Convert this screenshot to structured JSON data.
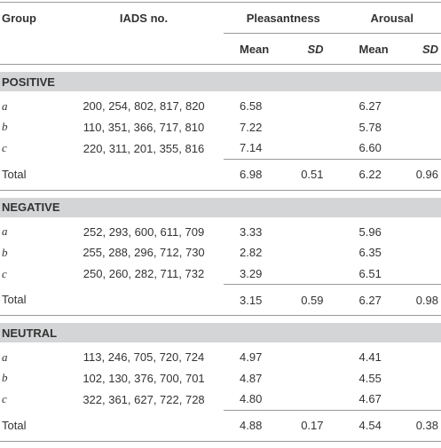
{
  "table": {
    "header": {
      "group": "Group",
      "iads": "IADS no.",
      "pleasantness": "Pleasantness",
      "arousal": "Arousal",
      "sub": [
        "Mean",
        "SD",
        "Mean",
        "SD"
      ]
    },
    "sections": [
      {
        "title": "POSITIVE",
        "rows": [
          [
            "a",
            "200, 254, 802, 817, 820",
            "6.58",
            "6.27"
          ],
          [
            "b",
            "110, 351, 366, 717, 810",
            "7.22",
            "5.78"
          ],
          [
            "c",
            "220, 311, 201, 355, 816",
            "7.14",
            "6.60"
          ]
        ],
        "total": [
          "Total",
          "6.98",
          "0.51",
          "6.22",
          "0.96"
        ]
      },
      {
        "title": "NEGATIVE",
        "rows": [
          [
            "a",
            "252, 293, 600, 611, 709",
            "3.33",
            "5.96"
          ],
          [
            "b",
            "255, 288, 296, 712, 730",
            "2.82",
            "6.35"
          ],
          [
            "c",
            "250, 260, 282, 711, 732",
            "3.29",
            "6.51"
          ]
        ],
        "total": [
          "Total",
          "3.15",
          "0.59",
          "6.27",
          "0.98"
        ]
      },
      {
        "title": "NEUTRAL",
        "rows": [
          [
            "a",
            "113, 246, 705, 720, 724",
            "4.97",
            "4.41"
          ],
          [
            "b",
            "102, 130, 376, 700, 701",
            "4.87",
            "4.55"
          ],
          [
            "c",
            "322, 361, 627, 722, 728",
            "4.80",
            "4.67"
          ]
        ],
        "total": [
          "Total",
          "4.88",
          "0.17",
          "4.54",
          "0.38"
        ]
      }
    ]
  }
}
